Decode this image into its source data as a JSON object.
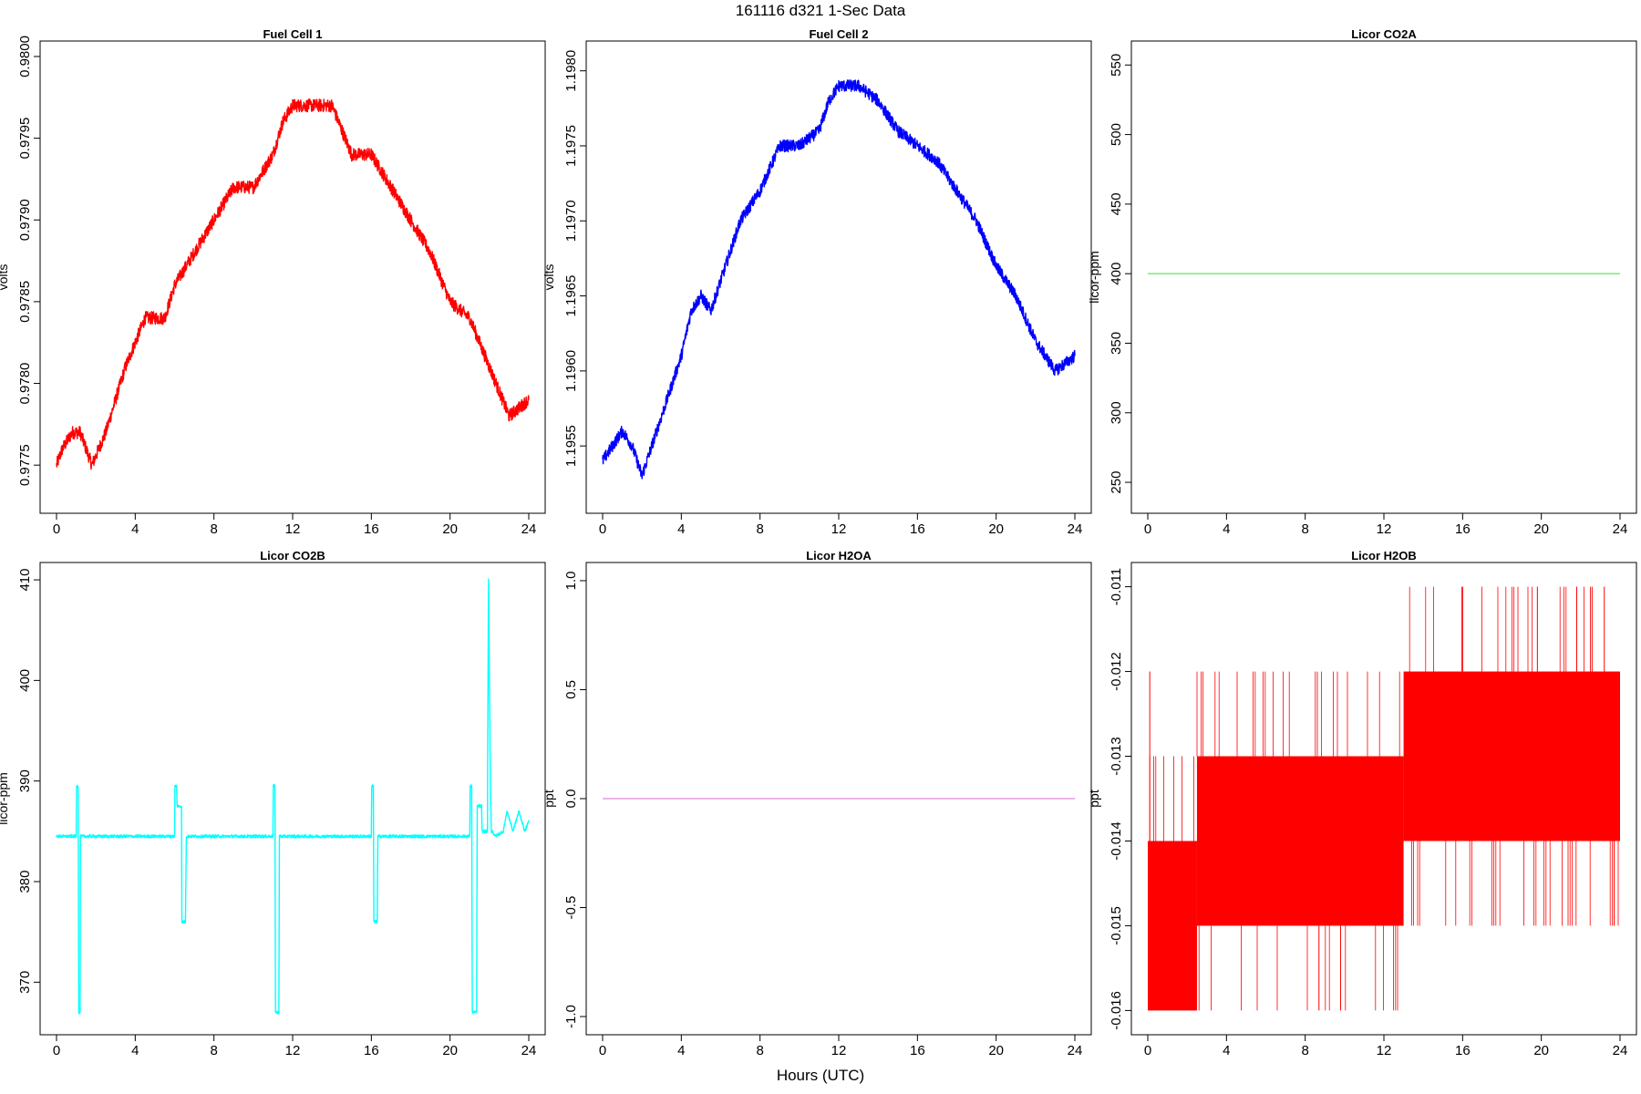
{
  "figure": {
    "title": "161116   d321   1-Sec Data",
    "xlabel": "Hours (UTC)"
  },
  "chart_data": [
    {
      "type": "line",
      "title": "Fuel Cell 1",
      "ylabel": "volts",
      "color": "#ff0000",
      "xlim": [
        0,
        24
      ],
      "ylim": [
        0.97725,
        0.98005
      ],
      "xticks": [
        0,
        4,
        8,
        12,
        16,
        20,
        24
      ],
      "xtick_labels": [
        "0",
        "4",
        "8",
        "12",
        "16",
        "20",
        "24"
      ],
      "yticks": [
        0.9775,
        0.978,
        0.9785,
        0.979,
        0.9795,
        0.98
      ],
      "ytick_labels": [
        "0.9775",
        "0.9780",
        "0.9785",
        "0.9790",
        "0.9795",
        "0.9800"
      ],
      "noise": 4e-05,
      "x": [
        0,
        0.3,
        0.8,
        1.2,
        1.8,
        2.5,
        3.5,
        4.5,
        5.5,
        6,
        7,
        8,
        9,
        10,
        11,
        11.5,
        12,
        13,
        14,
        15,
        16,
        17,
        18,
        19,
        20,
        21,
        22,
        23,
        24
      ],
      "y": [
        0.9775,
        0.9776,
        0.9777,
        0.9777,
        0.9775,
        0.9777,
        0.9781,
        0.9784,
        0.9784,
        0.9786,
        0.9788,
        0.979,
        0.9792,
        0.9792,
        0.9794,
        0.9796,
        0.9797,
        0.9797,
        0.9797,
        0.9794,
        0.9794,
        0.9792,
        0.979,
        0.9788,
        0.9785,
        0.9784,
        0.9781,
        0.9778,
        0.9779
      ]
    },
    {
      "type": "line",
      "title": "Fuel Cell 2",
      "ylabel": "volts",
      "color": "#0000ff",
      "xlim": [
        0,
        24
      ],
      "ylim": [
        1.1951,
        1.19815
      ],
      "xticks": [
        0,
        4,
        8,
        12,
        16,
        20,
        24
      ],
      "xtick_labels": [
        "0",
        "4",
        "8",
        "12",
        "16",
        "20",
        "24"
      ],
      "yticks": [
        1.1955,
        1.196,
        1.1965,
        1.197,
        1.1975,
        1.198
      ],
      "ytick_labels": [
        "1.1955",
        "1.1960",
        "1.1965",
        "1.1970",
        "1.1975",
        "1.1980"
      ],
      "noise": 4e-05,
      "x": [
        0,
        0.5,
        1,
        1.5,
        2,
        3,
        4,
        4.5,
        5,
        5.5,
        6,
        7,
        8,
        9,
        10,
        11,
        11.5,
        12,
        13,
        14,
        15,
        16,
        17,
        18,
        19,
        20,
        21,
        22,
        23,
        24
      ],
      "y": [
        1.1954,
        1.1955,
        1.1956,
        1.1955,
        1.1953,
        1.1957,
        1.1961,
        1.1964,
        1.1965,
        1.1964,
        1.1966,
        1.197,
        1.1972,
        1.1975,
        1.1975,
        1.1976,
        1.1978,
        1.1979,
        1.1979,
        1.1978,
        1.1976,
        1.1975,
        1.1974,
        1.1972,
        1.197,
        1.1967,
        1.1965,
        1.1962,
        1.196,
        1.1961
      ]
    },
    {
      "type": "line",
      "title": "Licor CO2A",
      "ylabel": "licor-ppm",
      "color": "#66ee66",
      "xlim": [
        0,
        24
      ],
      "ylim": [
        233,
        562
      ],
      "xticks": [
        0,
        4,
        8,
        12,
        16,
        20,
        24
      ],
      "xtick_labels": [
        "0",
        "4",
        "8",
        "12",
        "16",
        "20",
        "24"
      ],
      "yticks": [
        250,
        300,
        350,
        400,
        450,
        500,
        550
      ],
      "ytick_labels": [
        "250",
        "300",
        "350",
        "400",
        "450",
        "500",
        "550"
      ],
      "noise": 0,
      "x": [
        0,
        24
      ],
      "y": [
        400,
        400
      ]
    },
    {
      "type": "line",
      "title": "Licor CO2B",
      "ylabel": "licor-ppm",
      "color": "#00ffff",
      "xlim": [
        0,
        24
      ],
      "ylim": [
        365.5,
        411
      ],
      "xticks": [
        0,
        4,
        8,
        12,
        16,
        20,
        24
      ],
      "xtick_labels": [
        "0",
        "4",
        "8",
        "12",
        "16",
        "20",
        "24"
      ],
      "yticks": [
        370,
        380,
        390,
        400,
        410
      ],
      "ytick_labels": [
        "370",
        "380",
        "390",
        "400",
        "410"
      ],
      "noise": 0.15,
      "x": [
        0,
        1.0,
        1.02,
        1.1,
        1.13,
        1.2,
        1.22,
        1.3,
        1.33,
        6.0,
        6.02,
        6.1,
        6.13,
        6.35,
        6.37,
        6.55,
        6.6,
        6.7,
        6.72,
        11.0,
        11.02,
        11.1,
        11.13,
        11.3,
        11.33,
        16.0,
        16.02,
        16.1,
        16.13,
        16.3,
        16.33,
        16.5,
        16.53,
        21.0,
        21.02,
        21.1,
        21.13,
        21.35,
        21.38,
        21.6,
        21.63,
        21.9,
        21.95,
        22.0,
        22.05,
        22.1,
        22.15,
        22.3,
        22.7,
        22.9,
        23.2,
        23.5,
        23.8,
        24
      ],
      "y": [
        384.5,
        384.5,
        389.5,
        389.5,
        367,
        367,
        384.5,
        384.5,
        384.5,
        384.5,
        389.5,
        389.5,
        387.5,
        387.5,
        376,
        376,
        384.5,
        384.5,
        384.5,
        384.5,
        389.5,
        389.5,
        367,
        367,
        384.5,
        384.5,
        389.5,
        389.5,
        376,
        376,
        384.5,
        384.5,
        384.5,
        384.5,
        389.5,
        389.5,
        367,
        367,
        387.5,
        387.5,
        385,
        385,
        410,
        400,
        390,
        385,
        385,
        384.5,
        385,
        387,
        385,
        387,
        385,
        386
      ]
    },
    {
      "type": "line",
      "title": "Licor H2OA",
      "ylabel": "ppt",
      "color": "#dd88dd",
      "xlim": [
        0,
        24
      ],
      "ylim": [
        -1.05,
        1.05
      ],
      "xticks": [
        0,
        4,
        8,
        12,
        16,
        20,
        24
      ],
      "xtick_labels": [
        "0",
        "4",
        "8",
        "12",
        "16",
        "20",
        "24"
      ],
      "yticks": [
        -1,
        -0.5,
        0,
        0.5,
        1
      ],
      "ytick_labels": [
        "-1.0",
        "-0.5",
        "0.0",
        "0.5",
        "1.0"
      ],
      "noise": 0,
      "x": [
        0,
        24
      ],
      "y": [
        0,
        0
      ]
    },
    {
      "type": "line",
      "title": "Licor H2OB",
      "ylabel": "ppt",
      "color": "#ff0000",
      "xlim": [
        0,
        24
      ],
      "ylim": [
        -0.0162,
        -0.0108
      ],
      "xticks": [
        0,
        4,
        8,
        12,
        16,
        20,
        24
      ],
      "xtick_labels": [
        "0",
        "4",
        "8",
        "12",
        "16",
        "20",
        "24"
      ],
      "yticks": [
        -0.016,
        -0.015,
        -0.014,
        -0.013,
        -0.012,
        -0.011
      ],
      "ytick_labels": [
        "-0.016",
        "-0.015",
        "-0.014",
        "-0.013",
        "-0.012",
        "-0.011"
      ],
      "noise": 0,
      "bands": [
        {
          "x": [
            0,
            2.5
          ],
          "y": [
            -0.016,
            -0.014
          ]
        },
        {
          "x": [
            2.5,
            13
          ],
          "y": [
            -0.015,
            -0.013
          ]
        },
        {
          "x": [
            13,
            24
          ],
          "y": [
            -0.014,
            -0.012
          ]
        }
      ],
      "spikes": [
        {
          "x": 0.1,
          "y": [
            -0.014,
            -0.012
          ]
        },
        {
          "x": 16,
          "y": [
            -0.012,
            -0.011
          ]
        },
        {
          "x": 19.8,
          "y": [
            -0.012,
            -0.011
          ]
        },
        {
          "x": 21.8,
          "y": [
            -0.012,
            -0.011
          ]
        },
        {
          "x": 22.5,
          "y": [
            -0.012,
            -0.011
          ]
        },
        {
          "x": 23.2,
          "y": [
            -0.012,
            -0.011
          ]
        },
        {
          "x": 23.7,
          "y": [
            -0.014,
            -0.015
          ]
        },
        {
          "x": 8.7,
          "y": [
            -0.015,
            -0.016
          ]
        },
        {
          "x": 9.8,
          "y": [
            -0.015,
            -0.016
          ]
        }
      ]
    }
  ]
}
